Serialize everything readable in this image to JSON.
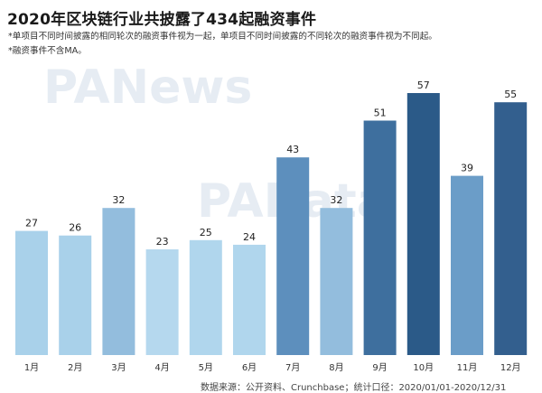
{
  "title": "2020年区块链行业共披露了434起融资事件",
  "notes": [
    "*单项目不同时间披露的相同轮次的融资事件视为一起，单项目不同时间披露的不同轮次的融资事件视为不同起。",
    "*融资事件不含MA。"
  ],
  "watermarks": [
    "PANews",
    "PAData"
  ],
  "source": "数据来源：公开资料、Crunchbase；统计口径：2020/01/01-2020/12/31",
  "chart_data": {
    "type": "bar",
    "title": "2020年区块链行业共披露了434起融资事件",
    "xlabel": "",
    "ylabel": "",
    "categories": [
      "1月",
      "2月",
      "3月",
      "4月",
      "5月",
      "6月",
      "7月",
      "8月",
      "9月",
      "10月",
      "11月",
      "12月"
    ],
    "values": [
      27,
      26,
      32,
      23,
      25,
      24,
      43,
      32,
      51,
      57,
      39,
      55
    ],
    "colors": [
      "#a9d1ea",
      "#a9d1ea",
      "#93bddd",
      "#b5d8ee",
      "#b0d6ed",
      "#b0d6ed",
      "#5d8fbd",
      "#93bddd",
      "#3e6f9e",
      "#2b5a88",
      "#6b9dc8",
      "#335f8e"
    ],
    "ylim": [
      0,
      57
    ],
    "grid": false,
    "legend": "none"
  }
}
